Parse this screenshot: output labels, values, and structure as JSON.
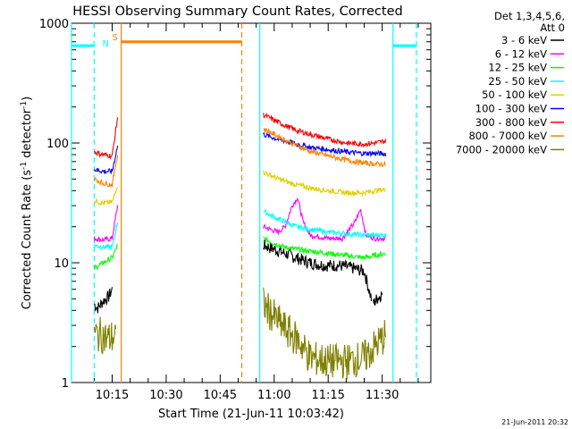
{
  "chart_data": {
    "type": "line",
    "title": "HESSI Observing Summary Count Rates, Corrected",
    "xlabel": "Start Time (21-Jun-11 10:03:42)",
    "ylabel": "Corrected Count Rate (s⁻¹ detector⁻¹)",
    "ylabel_main": "Corrected Count Rate (s",
    "ylabel_sup1": "-1",
    "ylabel_mid": " detector",
    "ylabel_sup2": "-1",
    "ylabel_end": ")",
    "y_scale": "log",
    "ylim": [
      1,
      1000
    ],
    "y_ticks": [
      "1",
      "10",
      "100",
      "1000"
    ],
    "x_ticks": [
      "10:15",
      "10:30",
      "10:45",
      "11:00",
      "11:15",
      "11:30"
    ],
    "x_tick_minutes": [
      15,
      30,
      45,
      60,
      75,
      90
    ],
    "xlim_minutes": [
      3.7,
      103.5
    ],
    "legend_header": [
      "Det 1,3,4,5,6,",
      "Att 0"
    ],
    "legend_position": "right",
    "series": [
      {
        "name": "3 - 6 keV",
        "color": "#000000",
        "segments": [
          {
            "x": [
              10.0,
              11.0,
              12.5,
              14.0,
              15.0
            ],
            "y": [
              4.5,
              4.2,
              4.8,
              5.2,
              6.0
            ]
          },
          {
            "x": [
              57.0,
              60.0,
              63.0,
              66.0,
              70.0,
              74.0,
              78.0,
              82.0,
              85.0,
              87.0
            ],
            "y": [
              14,
              13,
              12,
              11,
              10,
              9.5,
              9.5,
              9,
              8.5,
              5
            ]
          },
          {
            "x": [
              87.5,
              88.5,
              90.0
            ],
            "y": [
              4.5,
              5,
              5.5
            ]
          }
        ]
      },
      {
        "name": "6 - 12 keV",
        "color": "#ff00ff",
        "segments": [
          {
            "x": [
              10.0,
              12.5,
              15.0,
              16.5
            ],
            "y": [
              16,
              15.5,
              16,
              30
            ]
          },
          {
            "x": [
              57.0,
              59.0,
              61.0,
              63.0,
              65.0,
              66.5,
              68.0,
              70.0,
              75.0,
              79.0,
              82.5,
              84.0,
              85.5,
              88.0,
              91.0
            ],
            "y": [
              20,
              19,
              18,
              20,
              30,
              35,
              22,
              17,
              16,
              16,
              22,
              28,
              17,
              16,
              16
            ]
          }
        ]
      },
      {
        "name": "12 - 25 keV",
        "color": "#00ff00",
        "segments": [
          {
            "x": [
              10.0,
              12.5,
              15.0,
              16.5
            ],
            "y": [
              9,
              10,
              11,
              14
            ]
          },
          {
            "x": [
              57.0,
              60.0,
              63.0,
              66.0,
              70.0,
              75.0,
              80.0,
              85.0,
              88.0,
              91.0
            ],
            "y": [
              16,
              14.5,
              13.5,
              13,
              12.5,
              12,
              11.5,
              11,
              11.5,
              12
            ]
          }
        ]
      },
      {
        "name": "25 - 50 keV",
        "color": "#00ffff",
        "segments": [
          {
            "x": [
              10.0,
              12.5,
              15.0,
              16.5
            ],
            "y": [
              14,
              13.5,
              13.5,
              22
            ]
          },
          {
            "x": [
              57.0,
              60.0,
              63.0,
              66.0,
              70.0,
              75.0,
              80.0,
              85.0,
              88.0,
              91.0
            ],
            "y": [
              27,
              24,
              22,
              20,
              19,
              18,
              17.5,
              17,
              17,
              17
            ]
          }
        ]
      },
      {
        "name": "50 - 100 keV",
        "color": "#e0d000",
        "segments": [
          {
            "x": [
              10.0,
              12.5,
              15.0,
              16.5
            ],
            "y": [
              33,
              31.5,
              32,
              45
            ]
          },
          {
            "x": [
              57.0,
              60.0,
              63.0,
              66.0,
              70.0,
              75.0,
              80.0,
              85.0,
              88.0,
              91.0
            ],
            "y": [
              57,
              52,
              48,
              45,
              42,
              40,
              38.5,
              38.5,
              40,
              41
            ]
          }
        ]
      },
      {
        "name": "100 - 300 keV",
        "color": "#0000ff",
        "segments": [
          {
            "x": [
              10.0,
              12.5,
              15.0,
              16.5
            ],
            "y": [
              60,
              58,
              58,
              95
            ]
          },
          {
            "x": [
              57.0,
              60.0,
              63.0,
              66.0,
              70.0,
              75.0,
              80.0,
              85.0,
              88.0,
              91.0
            ],
            "y": [
              118,
              110,
              104,
              98,
              92,
              88,
              84,
              82,
              82,
              81
            ]
          }
        ]
      },
      {
        "name": "300 - 800 keV",
        "color": "#ff0000",
        "segments": [
          {
            "x": [
              10.0,
              12.5,
              15.0,
              16.5
            ],
            "y": [
              84,
              80,
              78,
              165
            ]
          },
          {
            "x": [
              57.0,
              60.0,
              63.0,
              66.0,
              70.0,
              75.0,
              80.0,
              85.0,
              88.0,
              91.0
            ],
            "y": [
              172,
              155,
              140,
              128,
              118,
              108,
              100,
              98,
              100,
              104
            ]
          }
        ]
      },
      {
        "name": "800 - 7000 keV",
        "color": "#ff8000",
        "segments": [
          {
            "x": [
              10.0,
              12.5,
              15.0,
              16.5
            ],
            "y": [
              50,
              46,
              45,
              80
            ]
          },
          {
            "x": [
              57.0,
              60.0,
              63.0,
              66.0,
              70.0,
              75.0,
              80.0,
              85.0,
              88.0,
              91.0
            ],
            "y": [
              132,
              118,
              106,
              96,
              85,
              78,
              72,
              68,
              67,
              66
            ]
          }
        ]
      },
      {
        "name": "7000 - 20000 keV",
        "color": "#808000",
        "segments": [
          {
            "x": [
              10.0,
              12.0,
              14.0,
              16.0
            ],
            "y": [
              2.5,
              2.5,
              2.3,
              2.5
            ]
          },
          {
            "x": [
              57.0,
              60.0,
              63.0,
              67.0,
              70.0,
              75.0,
              80.0,
              85.0,
              88.0,
              91.0
            ],
            "y": [
              4.5,
              3.5,
              2.8,
              2.2,
              1.6,
              1.5,
              1.5,
              1.6,
              2.0,
              2.5
            ]
          }
        ]
      }
    ],
    "attenuator_level": 700,
    "attenuator_color": "#ff8000",
    "attenuator_segment_minutes": [
      17.5,
      51.0
    ],
    "night_level": 650,
    "night_color": "#00ffff",
    "night_segments_minutes": [
      [
        3.7,
        10.0
      ],
      [
        93.0,
        99.5
      ]
    ],
    "orange_vertical_lines": [
      {
        "x": 17.5,
        "style": "solid"
      },
      {
        "x": 51.0,
        "style": "dashed"
      }
    ],
    "cyan_vertical_lines": [
      {
        "x": 3.7,
        "style": "solid"
      },
      {
        "x": 56.0,
        "style": "solid"
      },
      {
        "x": 10.0,
        "style": "dashed"
      },
      {
        "x": 93.0,
        "style": "solid"
      },
      {
        "x": 99.5,
        "style": "dashed"
      }
    ],
    "event_markers": [
      {
        "label": "N",
        "x": 13.2,
        "color": "#00ffff"
      },
      {
        "label": "S",
        "x": 15.8,
        "color": "#ff8000"
      }
    ],
    "footer_date": "21-Jun-2011 20:32"
  }
}
